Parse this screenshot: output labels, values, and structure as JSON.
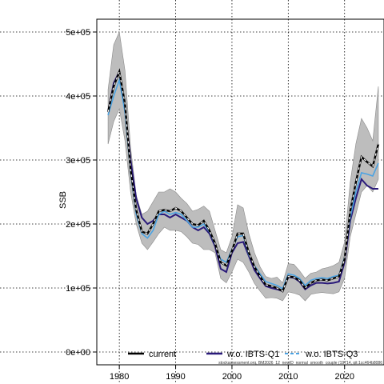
{
  "chart_data": {
    "type": "line",
    "title": "",
    "xlabel": "",
    "ylabel": "SSB",
    "xlim": [
      1976,
      2027
    ],
    "ylim": [
      -20000,
      520000
    ],
    "grid": true,
    "x_ticks": [
      1980,
      1990,
      2000,
      2010,
      2020
    ],
    "x_tick_labels": [
      "1980",
      "1990",
      "2000",
      "2010",
      "2020"
    ],
    "y_ticks": [
      0,
      100000,
      200000,
      300000,
      400000,
      500000
    ],
    "y_tick_labels": [
      "0e+00",
      "1e+05",
      "2e+05",
      "3e+05",
      "4e+05",
      "5e+05"
    ],
    "legend_position": "bottom",
    "legend": [
      {
        "label": "current",
        "color": "#000000",
        "style": "solid"
      },
      {
        "label": "w.o. IBTS-Q1",
        "color": "#2a1a7a",
        "style": "solid"
      },
      {
        "label": "w.o. IBTS-Q3",
        "color": "#4ba3e3",
        "style": "dashed"
      }
    ],
    "footnote": "stockassessment.org, BM2026_12_newID_normal_smooth_couple (19714, git:1cc464b8086",
    "x": [
      1978,
      1979,
      1980,
      1981,
      1982,
      1983,
      1984,
      1985,
      1986,
      1987,
      1988,
      1989,
      1990,
      1991,
      1992,
      1993,
      1994,
      1995,
      1996,
      1997,
      1998,
      1999,
      2000,
      2001,
      2002,
      2003,
      2004,
      2005,
      2006,
      2007,
      2008,
      2009,
      2010,
      2011,
      2012,
      2013,
      2014,
      2015,
      2016,
      2017,
      2018,
      2019,
      2020,
      2021,
      2022,
      2023,
      2024,
      2025,
      2026
    ],
    "band": {
      "lower": [
        325000,
        360000,
        380000,
        330000,
        250000,
        200000,
        170000,
        160000,
        172000,
        185000,
        195000,
        190000,
        190000,
        188000,
        180000,
        170000,
        168000,
        160000,
        160000,
        155000,
        115000,
        108000,
        125000,
        145000,
        140000,
        125000,
        107000,
        95000,
        84000,
        85000,
        84000,
        80000,
        94000,
        92000,
        89000,
        80000,
        90000,
        92000,
        93000,
        92000,
        91000,
        94000,
        115000,
        180000,
        215000,
        250000,
        260000,
        250000,
        270000
      ],
      "upper": [
        410000,
        480000,
        500000,
        440000,
        320000,
        245000,
        215000,
        220000,
        235000,
        250000,
        250000,
        255000,
        250000,
        240000,
        232000,
        220000,
        223000,
        228000,
        220000,
        190000,
        160000,
        155000,
        180000,
        230000,
        225000,
        185000,
        155000,
        133000,
        118000,
        115000,
        117000,
        108000,
        138000,
        137000,
        127000,
        115000,
        123000,
        125000,
        130000,
        132000,
        135000,
        140000,
        172000,
        265000,
        325000,
        365000,
        350000,
        330000,
        415000
      ]
    },
    "series": [
      {
        "name": "current",
        "color": "#000000",
        "style": "dashed-bw",
        "values": [
          375000,
          415000,
          438000,
          388000,
          285000,
          222000,
          188000,
          185000,
          200000,
          220000,
          222000,
          220000,
          225000,
          220000,
          210000,
          200000,
          198000,
          205000,
          190000,
          170000,
          140000,
          135000,
          158000,
          185000,
          185000,
          155000,
          133000,
          118000,
          105000,
          103000,
          100000,
          95000,
          118000,
          117000,
          112000,
          100000,
          108000,
          112000,
          113000,
          112000,
          115000,
          118000,
          145000,
          220000,
          265000,
          305000,
          297000,
          290000,
          325000
        ]
      },
      {
        "name": "w.o. IBTS-Q1",
        "color": "#2a1a7a",
        "style": "solid",
        "values": [
          375000,
          420000,
          438000,
          380000,
          300000,
          240000,
          210000,
          200000,
          205000,
          215000,
          215000,
          210000,
          215000,
          210000,
          205000,
          195000,
          190000,
          195000,
          185000,
          165000,
          130000,
          125000,
          155000,
          170000,
          172000,
          150000,
          128000,
          115000,
          103000,
          100000,
          98000,
          95000,
          117000,
          116000,
          110000,
          98000,
          104000,
          108000,
          108000,
          107000,
          108000,
          110000,
          140000,
          205000,
          240000,
          270000,
          260000,
          255000,
          255000
        ]
      },
      {
        "name": "w.o. IBTS-Q3",
        "color": "#4ba3e3",
        "style": "dashed",
        "values": [
          370000,
          400000,
          425000,
          375000,
          280000,
          215000,
          185000,
          178000,
          190000,
          215000,
          220000,
          215000,
          218000,
          215000,
          205000,
          195000,
          195000,
          200000,
          188000,
          168000,
          145000,
          140000,
          160000,
          180000,
          182000,
          152000,
          135000,
          122000,
          110000,
          107000,
          104000,
          99000,
          122000,
          120000,
          115000,
          104000,
          112000,
          115000,
          116000,
          115000,
          118000,
          120000,
          148000,
          210000,
          250000,
          280000,
          278000,
          275000,
          295000
        ]
      }
    ]
  }
}
